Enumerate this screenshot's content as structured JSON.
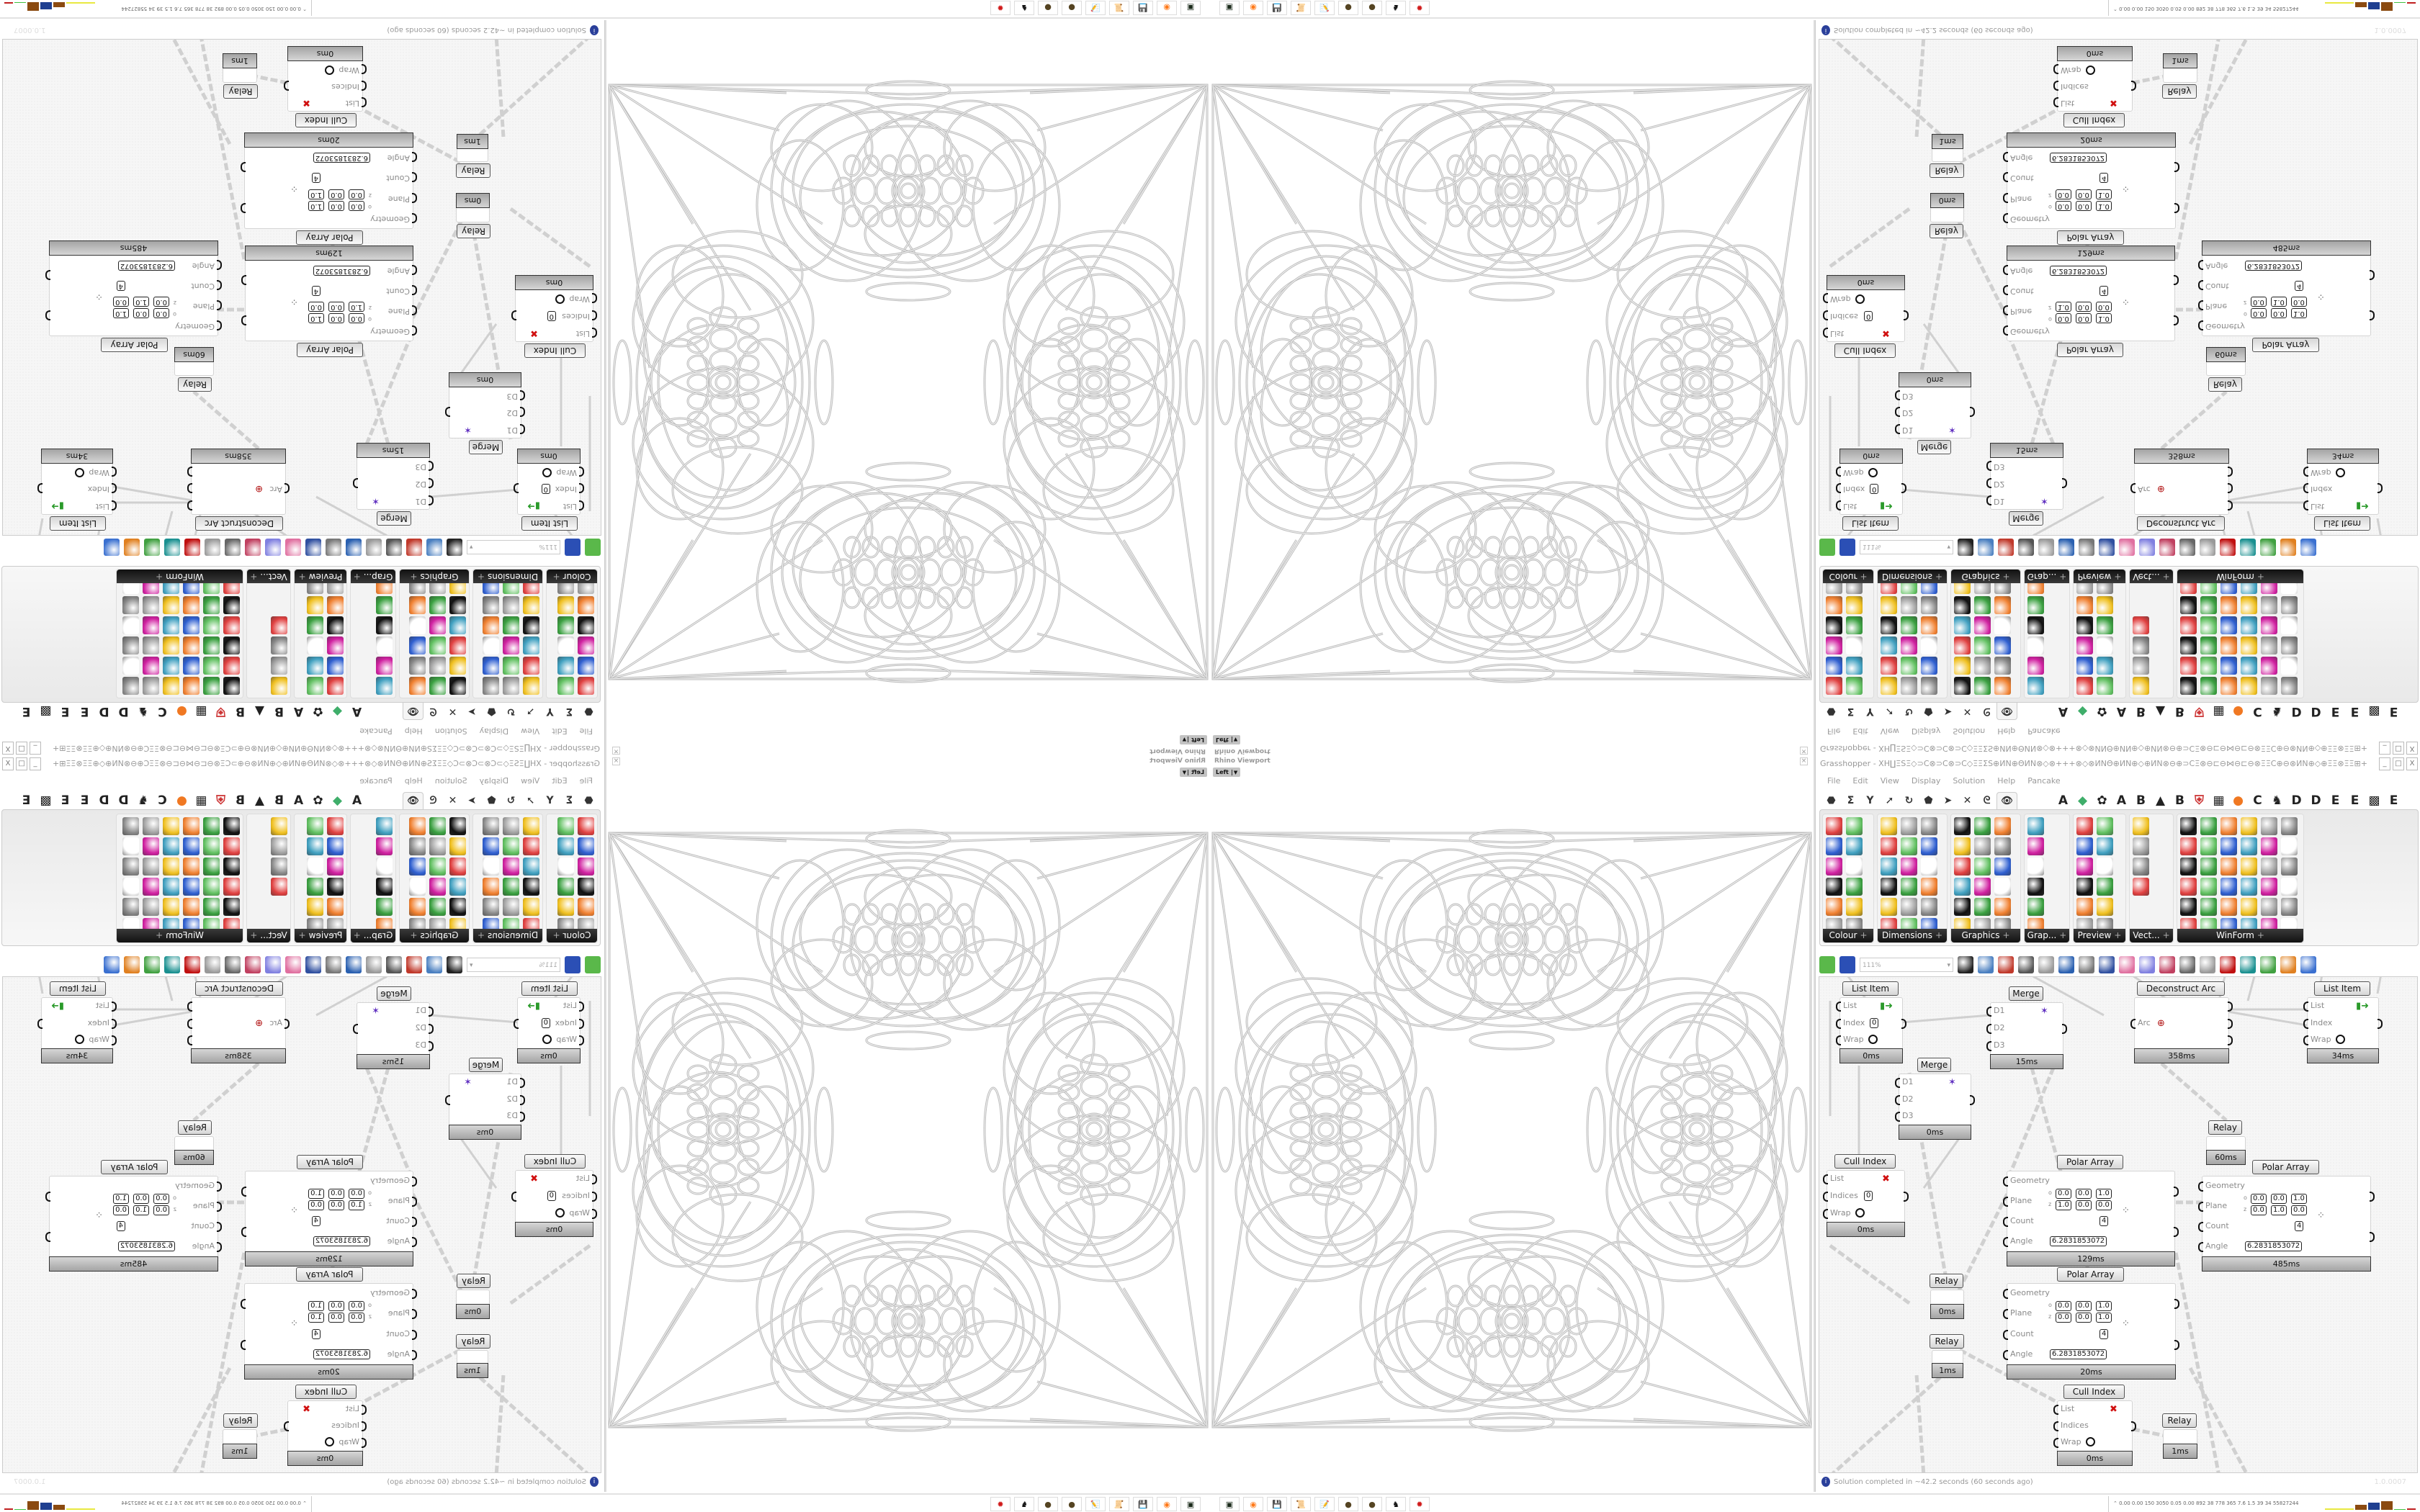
{
  "viewport": {
    "title": "Rhino Viewport",
    "view": "Left",
    "close": "×"
  },
  "gh": {
    "title": "Grasshopper - XH∐ΞSΞ◇⊃C⊗⊃C⊗⊃C◇ΞΞΣS⊕ИN⊕ΘИN⊗◇⊗+++⊗◇⊗ИNΘ⊕ИN⊕◇⊕ИN⊗⊖⊕⊃CΞ⊗⊖⊏⊖⋈⊖⊏⊖⊗ΞΞC⊕⊖⊗ИN⊕◇⊕ΞΞ⊗ΞΞ⊞+ΞS+⊞ΞΞ⊗ΞΞ⊕◇⊕⊗⊏ΞΞ⊞⊕+⊃C...",
    "window_controls": [
      "_",
      "□",
      "X"
    ],
    "menu": [
      "File",
      "Edit",
      "View",
      "Display",
      "Solution",
      "Help",
      "Pancake"
    ],
    "tabs": {
      "icons": [
        "⬣",
        "Σ",
        "Y",
        "➚",
        "↻",
        "⬟",
        "➤",
        "✕",
        "ᘓ"
      ],
      "selected": "👁",
      "letters": [
        "A",
        "◆",
        "✿",
        "A",
        "B",
        "▲",
        "B",
        "⛨",
        "▦",
        "●",
        "C",
        "♞",
        "D",
        "D",
        "E",
        "E",
        "▩",
        "E"
      ]
    },
    "ribbon_groups": [
      {
        "label": "Colour"
      },
      {
        "label": "Dimensions"
      },
      {
        "label": "Graphics"
      },
      {
        "label": "Grap..."
      },
      {
        "label": "Preview"
      },
      {
        "label": "Vect..."
      },
      {
        "label": "WinForm"
      }
    ],
    "toolbar": {
      "zoom": "111%"
    },
    "nodes": [
      {
        "label": "List Item",
        "inputs": [
          "List",
          "Index",
          "Wrap"
        ],
        "outputs": [
          "i"
        ],
        "index": "0",
        "time": "0ms"
      },
      {
        "label": "Merge",
        "inputs": [
          "D1",
          "D2",
          "D3"
        ],
        "outputs": [
          "Result"
        ],
        "time": "15ms"
      },
      {
        "label": "Deconstruct Arc",
        "inputs": [
          "Arc"
        ],
        "outputs": [
          "Base Plane",
          "Radius",
          "Angle"
        ],
        "time": "358ms"
      },
      {
        "label": "List Item",
        "inputs": [
          "List",
          "Index",
          "Wrap"
        ],
        "outputs": [
          "i"
        ],
        "time": "34ms"
      },
      {
        "label": "Merge",
        "inputs": [
          "D1",
          "D2",
          "D3"
        ],
        "outputs": [
          "Result"
        ],
        "time": "0ms"
      },
      {
        "label": "Relay",
        "inputs": [],
        "outputs": [],
        "time": "60ms"
      },
      {
        "label": "Cull Index",
        "inputs": [
          "List",
          "Indices",
          "Wrap"
        ],
        "outputs": [
          "List"
        ],
        "index": "0",
        "time": "0ms"
      },
      {
        "label": "Polar Array",
        "inputs": [
          "Geometry",
          "Plane",
          "Count",
          "Angle"
        ],
        "outputs": [
          "Geometry",
          "Transform"
        ],
        "plane": {
          "o": [
            "0.0",
            "0.0",
            "1.0"
          ],
          "z": [
            "1.0",
            "0.0",
            "0.0"
          ]
        },
        "count": "4",
        "angle": "6.2831853072",
        "time": "129ms"
      },
      {
        "label": "Polar Array",
        "inputs": [
          "Geometry",
          "Plane",
          "Count",
          "Angle"
        ],
        "outputs": [
          "Geometry",
          "Transform"
        ],
        "plane": {
          "o": [
            "0.0",
            "0.0",
            "1.0"
          ],
          "z": [
            "0.0",
            "1.0",
            "0.0"
          ]
        },
        "count": "4",
        "angle": "6.2831853072",
        "time": "485ms"
      },
      {
        "label": "Relay",
        "inputs": [],
        "outputs": [],
        "time": "0ms"
      },
      {
        "label": "Polar Array",
        "inputs": [
          "Geometry",
          "Plane",
          "Count",
          "Angle"
        ],
        "outputs": [
          "Geometry",
          "Transform"
        ],
        "plane": {
          "o": [
            "0.0",
            "0.0",
            "1.0"
          ],
          "z": [
            "0.0",
            "0.0",
            "1.0"
          ]
        },
        "count": "4",
        "angle": "6.2831853072",
        "time": "20ms"
      },
      {
        "label": "Relay",
        "inputs": [],
        "outputs": [],
        "time": "1ms"
      },
      {
        "label": "Cull Index",
        "inputs": [
          "List",
          "Indices",
          "Wrap"
        ],
        "outputs": [
          "List"
        ],
        "time": "0ms"
      },
      {
        "label": "Relay",
        "inputs": [],
        "outputs": [],
        "time": "1ms"
      }
    ],
    "status": {
      "icon": "info-icon",
      "message": "Solution completed in ~42.2 seconds (60 seconds ago)",
      "version": "1.0.0007"
    }
  },
  "taskbar": {
    "apps": [
      {
        "name": "terminal-icon",
        "glyph": "▣"
      },
      {
        "name": "firefox-icon",
        "glyph": "◉"
      },
      {
        "name": "floppy-icon",
        "glyph": "💾"
      },
      {
        "name": "scroll-icon",
        "glyph": "📜"
      },
      {
        "name": "notepad-icon",
        "glyph": "📝"
      },
      {
        "name": "seed-icon",
        "glyph": "●"
      },
      {
        "name": "seed-icon",
        "glyph": "●"
      },
      {
        "name": "badger-icon",
        "glyph": "♞"
      },
      {
        "name": "red-app-icon",
        "glyph": "✹"
      }
    ],
    "stats": "0.00 0.00 150 3050 0.05 0.00 892 38 778 365 7.6 1.5 39 34 55827244"
  },
  "colors": {
    "wire": "#c8c8c8",
    "geometry": "#bdbdbd",
    "footer": "#b0b0b0",
    "ribbon_label": "#1a1a1a",
    "status_icon": "#2a3f9a"
  }
}
